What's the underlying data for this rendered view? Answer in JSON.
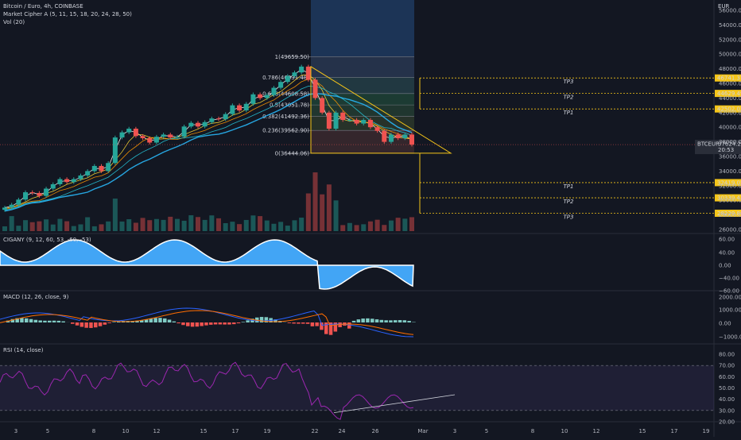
{
  "header": {
    "symbol_line": "Bitcoin / Euro, 4h, COINBASE",
    "indicator_1": "Market Cipher A (5, 11, 15, 18, 20, 24, 28, 50)",
    "indicator_2": "Vol (20)"
  },
  "currency": "EUR",
  "colors": {
    "background": "#131722",
    "up": "#26a69a",
    "down": "#ef5350",
    "target": "#f5c518",
    "fib_line": "#787b86",
    "cipher_wave": "#42a5f5",
    "rsi_line": "#9c27b0",
    "rsi_band": "#7e57c2",
    "macd_line": "#2962ff",
    "signal_line": "#ff6d00",
    "price_tag": "#2a2e39"
  },
  "chart_data": [
    {
      "type": "candlestick",
      "title": "BTCEUR",
      "ylim": [
        26000,
        56000
      ],
      "price_axis_ticks": [
        "56000.00",
        "54000.00",
        "52000.00",
        "50000.00",
        "48000.00",
        "46000.00",
        "44000.00",
        "42000.00",
        "40000.00",
        "38000.00",
        "36000.00",
        "34000.00",
        "32000.00",
        "30000.00",
        "28000.00",
        "26000.00"
      ],
      "close_series_approx": [
        29000,
        29400,
        30100,
        31100,
        31000,
        30600,
        31600,
        32200,
        32900,
        32500,
        32900,
        33400,
        34000,
        34700,
        34000,
        35100,
        38600,
        39300,
        39800,
        38800,
        38500,
        37900,
        38700,
        39000,
        38600,
        38700,
        40100,
        40600,
        40100,
        40700,
        41200,
        41100,
        41800,
        43000,
        42300,
        43200,
        44500,
        44000,
        44400,
        45400,
        46200,
        47000,
        47500,
        48300,
        46500,
        44000,
        42000,
        39800,
        42000,
        41000,
        41000,
        40500,
        41000,
        40000,
        39500,
        38000,
        39000,
        38500,
        39000,
        37624.28
      ],
      "current_price": {
        "label": "BTCEUR",
        "value": "37624.28",
        "countdown": "20:53"
      },
      "fibonacci": [
        {
          "level": "1",
          "price": "49659.50"
        },
        {
          "level": "0.786",
          "price": "46831.48"
        },
        {
          "level": "0.618",
          "price": "44608.58"
        },
        {
          "level": "0.5",
          "price": "43051.78"
        },
        {
          "level": "0.382",
          "price": "41492.36"
        },
        {
          "level": "0.236",
          "price": "39562.90"
        },
        {
          "level": "0",
          "price": "36444.06"
        }
      ],
      "targets": [
        {
          "name": "TP3",
          "price": "46741.37"
        },
        {
          "name": "TP2",
          "price": "44629.49"
        },
        {
          "name": "TP1",
          "price": "42502.02"
        },
        {
          "name": "TP1",
          "price": "32419.05"
        },
        {
          "name": "TP2",
          "price": "30339.47"
        },
        {
          "name": "TP3",
          "price": "28229.88"
        }
      ],
      "x_ticks": [
        "3",
        "5",
        "8",
        "10",
        "12",
        "15",
        "17",
        "19",
        "22",
        "24",
        "26",
        "Mar",
        "3",
        "5",
        "8",
        "10",
        "12",
        "15",
        "17",
        "19"
      ]
    },
    {
      "type": "area",
      "title": "CIGANY (9, 12, 60, 53, -60, -53)",
      "ticks": [
        "60.00",
        "40.00",
        "20.00",
        "0.00",
        "−40.00",
        "−60.00"
      ]
    },
    {
      "type": "histogram",
      "title": "MACD (12, 26, close, 9)",
      "ticks": [
        "2000.00",
        "1000.00",
        "0.00",
        "−1000.00"
      ]
    },
    {
      "type": "line",
      "title": "RSI (14, close)",
      "ticks": [
        "80.00",
        "70.00",
        "60.00",
        "50.00",
        "40.00",
        "30.00",
        "20.00"
      ],
      "upper_band": 70,
      "lower_band": 30
    }
  ]
}
